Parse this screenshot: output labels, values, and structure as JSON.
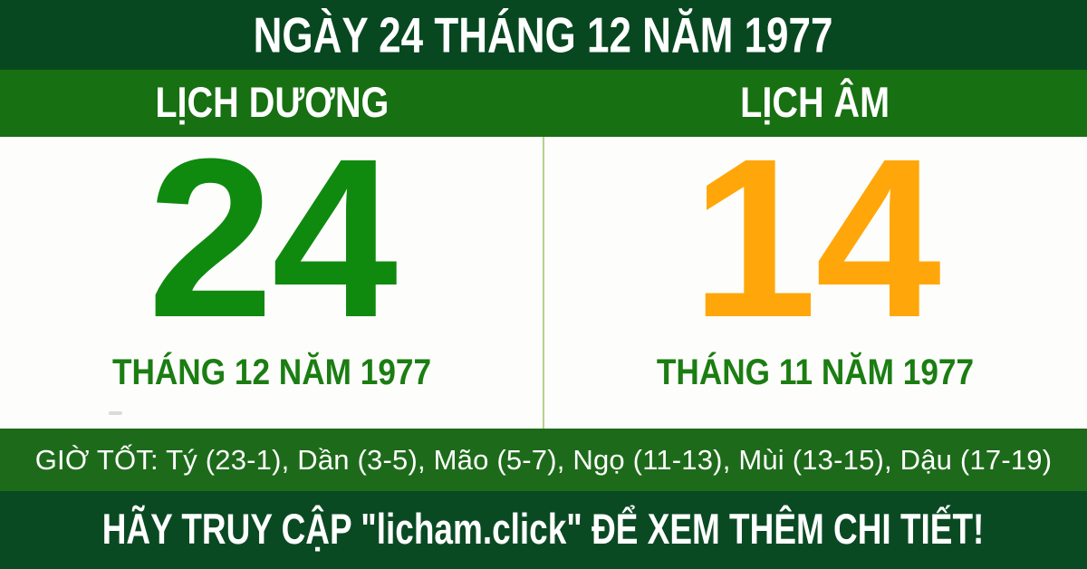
{
  "header": {
    "title": "NGÀY 24 THÁNG 12 NĂM 1977"
  },
  "columns": {
    "solar": {
      "header": "LỊCH DƯƠNG",
      "day": "24",
      "month_year": "THÁNG 12 NĂM 1977"
    },
    "lunar": {
      "header": "LỊCH ÂM",
      "day": "14",
      "month_year": "THÁNG 11 NĂM 1977"
    }
  },
  "good_hours": {
    "text": "GIỜ TỐT: Tý (23-1), Dần (3-5), Mão (5-7), Ngọ (11-13), Mùi (13-15), Dậu (17-19)"
  },
  "footer": {
    "text": "HÃY TRUY CẬP \"licham.click\" ĐỂ XEM THÊM CHI TIẾT!"
  },
  "colors": {
    "header_bg": "#084820",
    "subheader_bg": "#177012",
    "good_hours_bg": "#1d6b1a",
    "footer_bg": "#0a4a23",
    "solar_day": "#0f8a0f",
    "lunar_day": "#ffa70a",
    "month_label": "#1b7d12",
    "divider": "#b3d28c",
    "body_bg": "#fdfdfb",
    "text_white": "#ffffff"
  }
}
